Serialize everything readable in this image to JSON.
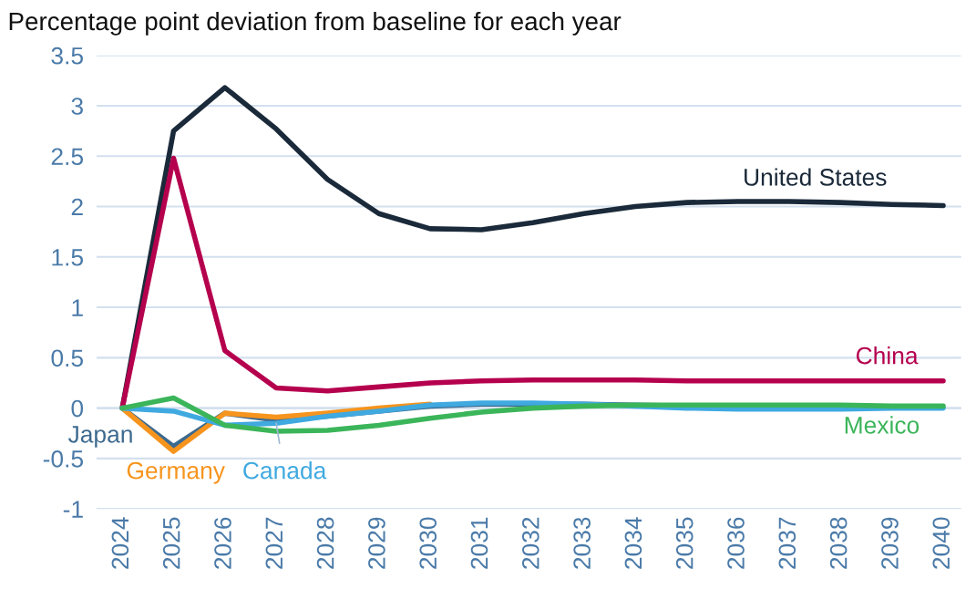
{
  "chart_data": {
    "type": "line",
    "title": "Percentage point deviation from baseline for each year",
    "categories": [
      "2024",
      "2025",
      "2026",
      "2027",
      "2028",
      "2029",
      "2030",
      "2031",
      "2032",
      "2033",
      "2034",
      "2035",
      "2036",
      "2037",
      "2038",
      "2039",
      "2040"
    ],
    "ylim": [
      -1,
      3.5
    ],
    "yticks": [
      {
        "value": -1,
        "label": "-1"
      },
      {
        "value": -0.5,
        "label": "-0.5"
      },
      0,
      0.5,
      1,
      1.5,
      2,
      2.5,
      3,
      3.5
    ],
    "grid": "y",
    "legend": false,
    "marker": "none",
    "line_style": "solid",
    "series": [
      {
        "name": "United States",
        "color": "#1b2a3a",
        "values": [
          0,
          2.75,
          3.18,
          2.77,
          2.27,
          1.93,
          1.78,
          1.77,
          1.84,
          1.93,
          2.0,
          2.04,
          2.05,
          2.05,
          2.04,
          2.02,
          2.01
        ]
      },
      {
        "name": "China",
        "color": "#b5004e",
        "values": [
          0,
          2.48,
          0.57,
          0.2,
          0.17,
          0.21,
          0.25,
          0.27,
          0.28,
          0.28,
          0.28,
          0.27,
          0.27,
          0.27,
          0.27,
          0.27,
          0.27
        ]
      },
      {
        "name": "Japan",
        "color": "#3d6a8f",
        "values": [
          0,
          -0.38,
          -0.05,
          -0.12,
          -0.08,
          -0.03,
          0.02,
          0.04,
          0.04,
          0.04,
          0.03,
          0.02,
          null,
          null,
          null,
          null,
          null
        ]
      },
      {
        "name": "Germany",
        "color": "#f7941d",
        "values": [
          0,
          -0.43,
          -0.05,
          -0.09,
          -0.05,
          0,
          0.04,
          null,
          null,
          null,
          null,
          null,
          null,
          null,
          null,
          null,
          null
        ]
      },
      {
        "name": "Canada",
        "color": "#3fa9e0",
        "values": [
          0,
          -0.03,
          -0.17,
          -0.15,
          -0.08,
          -0.03,
          0.03,
          0.05,
          0.05,
          0.04,
          0.02,
          0,
          -0.01,
          -0.01,
          -0.01,
          0,
          0
        ]
      },
      {
        "name": "Mexico",
        "color": "#3bb55a",
        "values": [
          0,
          0.1,
          -0.17,
          -0.23,
          -0.22,
          -0.17,
          -0.1,
          -0.04,
          0,
          0.02,
          0.03,
          0.03,
          0.03,
          0.03,
          0.03,
          0.02,
          0.02
        ]
      }
    ]
  }
}
